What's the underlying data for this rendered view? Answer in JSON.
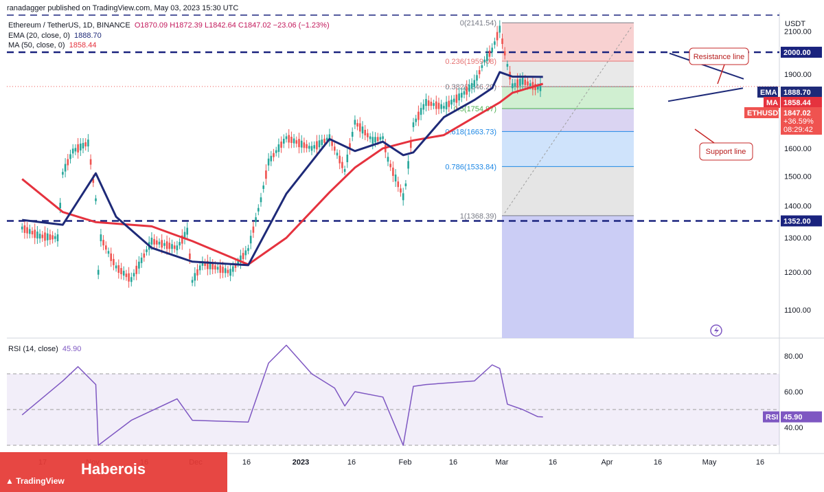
{
  "publisher": "ranadagger published on TradingView.com, May 03, 2023 15:30 UTC",
  "legend": {
    "symbol": "Ethereum / TetherUS, 1D, BINANCE",
    "ohlc": "O1870.09 H1872.39 L1842.64 C1847.02 −23.06 (−1.23%)",
    "ema": "EMA (20, close, 0)",
    "ema_value": "1888.70",
    "ma": "MA (50, close, 0)",
    "ma_value": "1858.44"
  },
  "rsi_legend": {
    "label": "RSI (14, close)",
    "value": "45.90"
  },
  "brand": "TradingView",
  "watermark": "Haberois",
  "currency": "USDT",
  "colors": {
    "price_up": "#26a69a",
    "price_down": "#ef5350",
    "ema": "#1e2a78",
    "ma": "#e5323e",
    "rsi": "#7e57c2",
    "level": "#1a237e"
  },
  "annotations": {
    "resistance": "Resistance line",
    "support": "Support line"
  },
  "price_tags": {
    "level_2000": "2000.00",
    "level_1352": "1352.00",
    "ema_label": "EMA",
    "ema_value": "1888.70",
    "ma_label": "MA",
    "ma_value": "1858.44",
    "symbol_label": "ETHUSDT",
    "price": "1847.02",
    "change": "+36.59%",
    "countdown": "08:29:42",
    "rsi_label": "RSI",
    "rsi_value": "45.90"
  },
  "fib_labels": [
    {
      "ratio": 0,
      "text": "0(2141.54)",
      "price": 2141.54
    },
    {
      "ratio": 0.236,
      "text": "0.236(1959.08)",
      "price": 1959.08
    },
    {
      "ratio": 0.382,
      "text": "0.382(1846.20)",
      "price": 1846.2
    },
    {
      "ratio": 0.5,
      "text": "0.5(1754.97)",
      "price": 1754.97
    },
    {
      "ratio": 0.618,
      "text": "0.618(1663.73)",
      "price": 1663.73
    },
    {
      "ratio": 0.786,
      "text": "0.786(1533.84)",
      "price": 1533.84
    },
    {
      "ratio": 1,
      "text": "1(1368.39)",
      "price": 1368.39
    }
  ],
  "chart_data": {
    "type": "line",
    "title": "Ethereum / TetherUS, 1D, BINANCE",
    "price_axis": {
      "ticks": [
        2100,
        2000,
        1900,
        1800,
        1700,
        1600,
        1500,
        1400,
        1300,
        1200,
        1100
      ],
      "tick_labels": [
        "2100.00",
        "1900.00",
        "1800.00",
        "1700.00",
        "1600.00",
        "1500.00",
        "1400.00",
        "1300.00",
        "1200.00",
        "1100.00"
      ],
      "range": [
        1030,
        2180
      ],
      "scale": "log"
    },
    "rsi_axis": {
      "ticks": [
        80,
        60,
        40
      ],
      "tick_labels": [
        "80.00",
        "60.00",
        "40.00"
      ],
      "range": [
        25,
        92
      ],
      "bands": [
        30,
        70
      ]
    },
    "time_axis": {
      "labels": [
        "17",
        "Nov",
        "16",
        "Dec",
        "16",
        "2023",
        "16",
        "Feb",
        "16",
        "Mar",
        "16",
        "Apr",
        "16",
        "May",
        "16"
      ]
    },
    "levels": [
      2000,
      1352
    ],
    "series": [
      {
        "name": "ETHUSDT close",
        "x": [
          "Oct 10",
          "Oct 17",
          "Oct 24",
          "Oct 26",
          "Oct 30",
          "Nov 5",
          "Nov 8",
          "Nov 9",
          "Nov 10",
          "Nov 16",
          "Nov 22",
          "Nov 30",
          "Dec 5",
          "Dec 10",
          "Dec 14",
          "Dec 16",
          "Dec 20",
          "Dec 31",
          "Jan 7",
          "Jan 12",
          "Jan 15",
          "Jan 22",
          "Feb 1",
          "Feb 8",
          "Feb 14",
          "Feb 18",
          "Feb 25",
          "Mar 1",
          "Mar 3",
          "Mar 9",
          "Mar 10",
          "Mar 13",
          "Mar 18",
          "Mar 25",
          "Apr 1",
          "Apr 6",
          "Apr 10",
          "Apr 13",
          "Apr 16",
          "Apr 19",
          "Apr 21",
          "Apr 25",
          "May 1",
          "May 3"
        ],
        "values": [
          1330,
          1305,
          1300,
          1510,
          1590,
          1620,
          1420,
          1200,
          1300,
          1215,
          1180,
          1290,
          1280,
          1270,
          1320,
          1175,
          1225,
          1200,
          1265,
          1420,
          1550,
          1640,
          1600,
          1640,
          1520,
          1700,
          1630,
          1640,
          1560,
          1430,
          1470,
          1690,
          1780,
          1760,
          1810,
          1860,
          1960,
          2010,
          2110,
          1940,
          1850,
          1870,
          1840,
          1847
        ]
      },
      {
        "name": "EMA (20, close, 0)",
        "x": [
          "Oct 10",
          "Oct 26",
          "Nov 8",
          "Nov 16",
          "Nov 30",
          "Dec 16",
          "Jan 7",
          "Jan 22",
          "Feb 8",
          "Feb 18",
          "Mar 1",
          "Mar 9",
          "Mar 13",
          "Mar 25",
          "Apr 6",
          "Apr 13",
          "Apr 16",
          "Apr 21",
          "May 3"
        ],
        "values": [
          1355,
          1340,
          1510,
          1365,
          1270,
          1230,
          1220,
          1440,
          1635,
          1590,
          1625,
          1575,
          1585,
          1720,
          1790,
          1840,
          1910,
          1890,
          1888.7
        ]
      },
      {
        "name": "MA (50, close, 0)",
        "x": [
          "Oct 10",
          "Oct 26",
          "Nov 8",
          "Nov 30",
          "Dec 16",
          "Jan 7",
          "Jan 22",
          "Feb 8",
          "Feb 18",
          "Mar 1",
          "Mar 13",
          "Mar 25",
          "Apr 6",
          "Apr 16",
          "Apr 21",
          "May 3"
        ],
        "values": [
          1490,
          1380,
          1348,
          1335,
          1290,
          1222,
          1300,
          1445,
          1530,
          1600,
          1630,
          1650,
          1720,
          1780,
          1820,
          1858.44
        ]
      },
      {
        "name": "RSI (14, close)",
        "x": [
          "Oct 10",
          "Oct 26",
          "Nov 1",
          "Nov 8",
          "Nov 9",
          "Nov 22",
          "Dec 10",
          "Dec 16",
          "Jan 7",
          "Jan 15",
          "Jan 22",
          "Feb 1",
          "Feb 10",
          "Feb 14",
          "Feb 18",
          "Mar 1",
          "Mar 9",
          "Mar 13",
          "Mar 18",
          "Apr 6",
          "Apr 13",
          "Apr 16",
          "Apr 19",
          "Apr 25",
          "May 1",
          "May 3"
        ],
        "values": [
          47,
          66,
          74,
          64,
          30,
          44,
          56,
          44,
          43,
          76,
          86,
          70,
          62,
          52,
          60,
          57,
          30,
          63,
          64,
          66,
          75,
          73,
          53,
          50,
          46,
          45.9
        ]
      }
    ]
  }
}
